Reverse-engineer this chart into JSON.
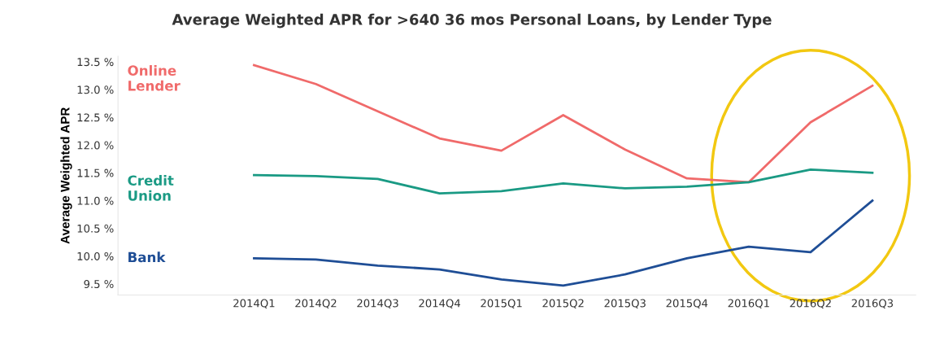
{
  "chart_data": {
    "type": "line",
    "title": "Average Weighted APR for >640 36 mos Personal Loans, by Lender Type",
    "ylabel": "Average Weighted APR",
    "categories": [
      "2014Q1",
      "2014Q2",
      "2014Q3",
      "2014Q4",
      "2015Q1",
      "2015Q2",
      "2015Q3",
      "2015Q4",
      "2016Q1",
      "2016Q2",
      "2016Q3"
    ],
    "series": [
      {
        "name": "Online\nLender",
        "color": "#f06a6a",
        "values": [
          13.44,
          13.1,
          12.61,
          12.12,
          11.9,
          12.54,
          11.92,
          11.4,
          11.33,
          12.41,
          13.07
        ]
      },
      {
        "name": "Credit\nUnion",
        "color": "#1a9a84",
        "values": [
          11.46,
          11.44,
          11.39,
          11.13,
          11.17,
          11.31,
          11.22,
          11.25,
          11.33,
          11.56,
          11.5
        ]
      },
      {
        "name": "Bank",
        "color": "#1f4e96",
        "values": [
          9.96,
          9.94,
          9.83,
          9.76,
          9.58,
          9.47,
          9.67,
          9.96,
          10.17,
          10.07,
          11.0
        ]
      }
    ],
    "ylim": [
      9.3,
      13.6
    ],
    "yticks": [
      {
        "value": 9.5,
        "label": "9.5 %"
      },
      {
        "value": 10.0,
        "label": "10.0 %"
      },
      {
        "value": 10.5,
        "label": "10.5 %"
      },
      {
        "value": 11.0,
        "label": "11.0 %"
      },
      {
        "value": 11.5,
        "label": "11.5 %"
      },
      {
        "value": 12.0,
        "label": "12.0 %"
      },
      {
        "value": 12.5,
        "label": "12.5 %"
      },
      {
        "value": 13.0,
        "label": "13.0 %"
      },
      {
        "value": 13.5,
        "label": "13.5 %"
      }
    ],
    "grid": false,
    "legend": false,
    "marker": "none",
    "line_style": "solid"
  }
}
